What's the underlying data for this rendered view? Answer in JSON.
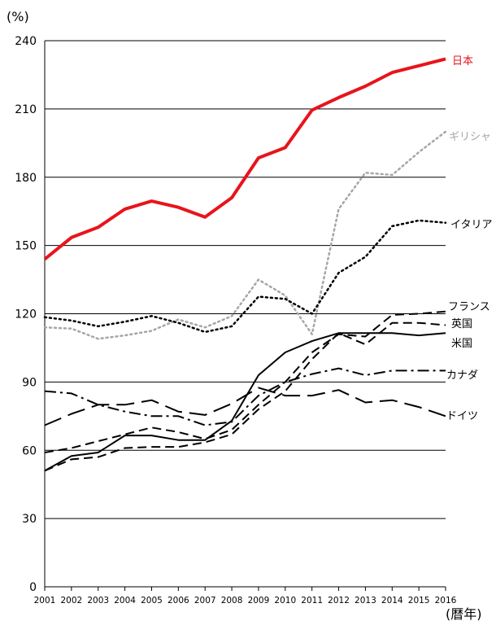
{
  "chart_data": {
    "type": "line",
    "ylabel": "(%)",
    "xlabel": "(暦年)",
    "ylim": [
      0,
      240
    ],
    "yticks": [
      0,
      30,
      60,
      90,
      120,
      150,
      180,
      210,
      240
    ],
    "grid": true,
    "x": [
      "2001",
      "2002",
      "2003",
      "2004",
      "2005",
      "2006",
      "2007",
      "2008",
      "2009",
      "2010",
      "2011",
      "2012",
      "2013",
      "2014",
      "2015",
      "2016"
    ],
    "series": [
      {
        "name": "日本",
        "color": "#e8141b",
        "dash": "solid",
        "width": 4,
        "values": [
          144,
          153.5,
          158,
          166,
          169.5,
          166.8,
          162.5,
          171,
          188.5,
          193,
          209.5,
          215,
          220,
          226,
          229,
          232
        ]
      },
      {
        "name": "ギリシャ",
        "color": "#a6a6a6",
        "dash": "dot",
        "width": 2.5,
        "values": [
          114,
          113.5,
          109,
          110.5,
          112.5,
          117.5,
          114,
          119,
          135,
          128,
          111,
          166,
          182,
          181,
          191,
          200
        ]
      },
      {
        "name": "イタリア",
        "color": "#000000",
        "dash": "dot",
        "width": 2.5,
        "values": [
          118.5,
          117,
          114.5,
          116.5,
          119,
          116,
          112,
          114.5,
          127.5,
          126.5,
          120,
          138,
          145,
          158.5,
          161,
          160
        ]
      },
      {
        "name": "フランス",
        "color": "#000000",
        "dash": "dash",
        "width": 2,
        "values": [
          59,
          61,
          64,
          67,
          70,
          68,
          65,
          69,
          80,
          90,
          103,
          111,
          110,
          119.5,
          120,
          121
        ]
      },
      {
        "name": "英国",
        "color": "#000000",
        "dash": "dash",
        "width": 2,
        "values": [
          51,
          56,
          57,
          61,
          61.5,
          61.5,
          63.5,
          67,
          78,
          86,
          100,
          111.5,
          106.5,
          116,
          116,
          115
        ]
      },
      {
        "name": "米国",
        "color": "#000000",
        "dash": "solid",
        "width": 2,
        "values": [
          51,
          57.5,
          59,
          66.5,
          66.5,
          64.5,
          64.5,
          73,
          93,
          103,
          108,
          111.5,
          111.5,
          111.5,
          110.5,
          111.5
        ]
      },
      {
        "name": "カナダ",
        "color": "#000000",
        "dash": "dashdot",
        "width": 2,
        "values": [
          86,
          85,
          80,
          77,
          75,
          75,
          71,
          72.5,
          84,
          90,
          93.5,
          96,
          93,
          95,
          95,
          95
        ]
      },
      {
        "name": "ドイツ",
        "color": "#000000",
        "dash": "longdash",
        "width": 2,
        "values": [
          71,
          76,
          80,
          80,
          82,
          77,
          75.5,
          80.5,
          87.5,
          84,
          84,
          86.5,
          81,
          82,
          79,
          75
        ]
      }
    ]
  }
}
